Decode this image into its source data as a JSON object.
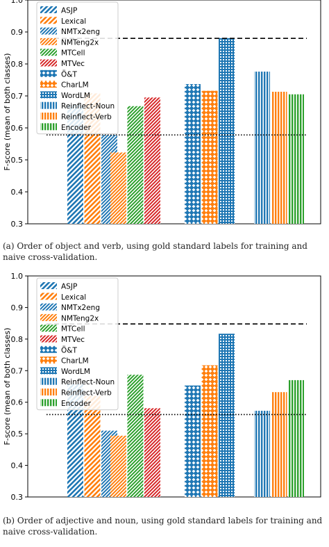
{
  "chart_data": [
    {
      "type": "bar",
      "panel": "a",
      "caption": "(a) Order of object and verb, using gold standard labels for training and naive cross-validation.",
      "ylabel": "F-score (mean of both classes)",
      "ylim": [
        0.3,
        1.0
      ],
      "yticks": [
        "0.3",
        "0.4",
        "0.5",
        "0.6",
        "0.7",
        "0.8",
        "0.9",
        "1.0"
      ],
      "legend_position": "upper-left",
      "reference_lines": [
        {
          "style": "dashed",
          "value": 0.88
        },
        {
          "style": "dotted",
          "value": 0.578
        }
      ],
      "series": [
        {
          "name": "ASJP",
          "value": 0.672
        },
        {
          "name": "Lexical",
          "value": 0.708
        },
        {
          "name": "NMTx2eng",
          "value": 0.578
        },
        {
          "name": "NMTeng2x",
          "value": 0.523
        },
        {
          "name": "MTCell",
          "value": 0.668
        },
        {
          "name": "MTVec",
          "value": 0.695
        },
        {
          "name": "Ö&T",
          "value": 0.737
        },
        {
          "name": "CharLM",
          "value": 0.716
        },
        {
          "name": "WordLM",
          "value": 0.881
        },
        {
          "name": "Reinflect-Noun",
          "value": 0.776
        },
        {
          "name": "Reinflect-Verb",
          "value": 0.713
        },
        {
          "name": "Encoder",
          "value": 0.705
        }
      ]
    },
    {
      "type": "bar",
      "panel": "b",
      "caption": "(b) Order of adjective and noun, using gold standard labels for training and naive cross-validation.",
      "ylabel": "F-score (mean of both classes)",
      "ylim": [
        0.3,
        1.0
      ],
      "yticks": [
        "0.3",
        "0.4",
        "0.5",
        "0.6",
        "0.7",
        "0.8",
        "0.9",
        "1.0"
      ],
      "legend_position": "upper-left",
      "reference_lines": [
        {
          "style": "dashed",
          "value": 0.848
        },
        {
          "style": "dotted",
          "value": 0.561
        }
      ],
      "series": [
        {
          "name": "ASJP",
          "value": 0.658
        },
        {
          "name": "Lexical",
          "value": 0.62
        },
        {
          "name": "NMTx2eng",
          "value": 0.51
        },
        {
          "name": "NMTeng2x",
          "value": 0.494
        },
        {
          "name": "MTCell",
          "value": 0.687
        },
        {
          "name": "MTVec",
          "value": 0.581
        },
        {
          "name": "Ö&T",
          "value": 0.653
        },
        {
          "name": "CharLM",
          "value": 0.717
        },
        {
          "name": "WordLM",
          "value": 0.817
        },
        {
          "name": "Reinflect-Noun",
          "value": 0.573
        },
        {
          "name": "Reinflect-Verb",
          "value": 0.632
        },
        {
          "name": "Encoder",
          "value": 0.67
        }
      ]
    }
  ],
  "styles": [
    {
      "color": "#1f77b4",
      "pattern": "diag"
    },
    {
      "color": "#ff7f0e",
      "pattern": "diag"
    },
    {
      "color": "#1f77b4",
      "pattern": "diag2"
    },
    {
      "color": "#ff7f0e",
      "pattern": "diag2"
    },
    {
      "color": "#2ca02c",
      "pattern": "diag2"
    },
    {
      "color": "#d62728",
      "pattern": "diag2"
    },
    {
      "color": "#1f77b4",
      "pattern": "cross"
    },
    {
      "color": "#ff7f0e",
      "pattern": "cross"
    },
    {
      "color": "#1f77b4",
      "pattern": "dots"
    },
    {
      "color": "#1f77b4",
      "pattern": "vert"
    },
    {
      "color": "#ff7f0e",
      "pattern": "vert"
    },
    {
      "color": "#2ca02c",
      "pattern": "vert"
    }
  ]
}
